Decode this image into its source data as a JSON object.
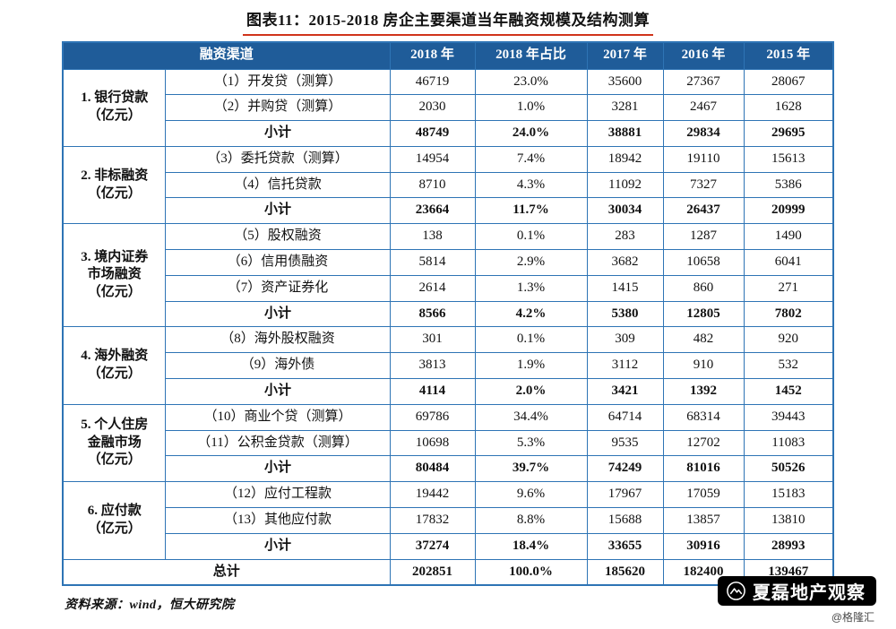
{
  "title": "图表11：2015-2018 房企主要渠道当年融资规模及结构测算",
  "table": {
    "headers": [
      "融资渠道",
      "2018 年",
      "2018 年占比",
      "2017 年",
      "2016 年",
      "2015 年"
    ],
    "groups": [
      {
        "category": "1. 银行贷款\n（亿元）",
        "rows": [
          {
            "item": "（1）开发贷（测算）",
            "values": [
              "46719",
              "23.0%",
              "35600",
              "27367",
              "28067"
            ]
          },
          {
            "item": "（2）并购贷（测算）",
            "values": [
              "2030",
              "1.0%",
              "3281",
              "2467",
              "1628"
            ]
          }
        ],
        "subtotal": {
          "label": "小计",
          "values": [
            "48749",
            "24.0%",
            "38881",
            "29834",
            "29695"
          ]
        }
      },
      {
        "category": "2. 非标融资\n（亿元）",
        "rows": [
          {
            "item": "（3）委托贷款（测算）",
            "values": [
              "14954",
              "7.4%",
              "18942",
              "19110",
              "15613"
            ]
          },
          {
            "item": "（4）信托贷款",
            "values": [
              "8710",
              "4.3%",
              "11092",
              "7327",
              "5386"
            ]
          }
        ],
        "subtotal": {
          "label": "小计",
          "values": [
            "23664",
            "11.7%",
            "30034",
            "26437",
            "20999"
          ]
        }
      },
      {
        "category": "3. 境内证券\n市场融资\n（亿元）",
        "rows": [
          {
            "item": "（5）股权融资",
            "values": [
              "138",
              "0.1%",
              "283",
              "1287",
              "1490"
            ]
          },
          {
            "item": "（6）信用债融资",
            "values": [
              "5814",
              "2.9%",
              "3682",
              "10658",
              "6041"
            ]
          },
          {
            "item": "（7）资产证券化",
            "values": [
              "2614",
              "1.3%",
              "1415",
              "860",
              "271"
            ]
          }
        ],
        "subtotal": {
          "label": "小计",
          "values": [
            "8566",
            "4.2%",
            "5380",
            "12805",
            "7802"
          ]
        }
      },
      {
        "category": "4. 海外融资\n（亿元）",
        "rows": [
          {
            "item": "（8）海外股权融资",
            "values": [
              "301",
              "0.1%",
              "309",
              "482",
              "920"
            ]
          },
          {
            "item": "（9）海外债",
            "values": [
              "3813",
              "1.9%",
              "3112",
              "910",
              "532"
            ]
          }
        ],
        "subtotal": {
          "label": "小计",
          "values": [
            "4114",
            "2.0%",
            "3421",
            "1392",
            "1452"
          ]
        }
      },
      {
        "category": "5. 个人住房\n金融市场\n（亿元）",
        "rows": [
          {
            "item": "（10）商业个贷（测算）",
            "values": [
              "69786",
              "34.4%",
              "64714",
              "68314",
              "39443"
            ]
          },
          {
            "item": "（11）公积金贷款（测算）",
            "values": [
              "10698",
              "5.3%",
              "9535",
              "12702",
              "11083"
            ]
          }
        ],
        "subtotal": {
          "label": "小计",
          "values": [
            "80484",
            "39.7%",
            "74249",
            "81016",
            "50526"
          ]
        }
      },
      {
        "category": "6. 应付款\n（亿元）",
        "rows": [
          {
            "item": "（12）应付工程款",
            "values": [
              "19442",
              "9.6%",
              "17967",
              "17059",
              "15183"
            ]
          },
          {
            "item": "（13）其他应付款",
            "values": [
              "17832",
              "8.8%",
              "15688",
              "13857",
              "13810"
            ]
          }
        ],
        "subtotal": {
          "label": "小计",
          "values": [
            "37274",
            "18.4%",
            "33655",
            "30916",
            "28993"
          ]
        }
      }
    ],
    "total": {
      "label": "总计",
      "values": [
        "202851",
        "100.0%",
        "185620",
        "182400",
        "139467"
      ]
    }
  },
  "source": "资料来源：wind，恒大研究院",
  "badge": {
    "name": "夏磊地产观察",
    "watermark": "@格隆汇"
  },
  "colors": {
    "header_bg": "#1f5c99",
    "border": "#2e74b5",
    "title_underline": "#d0341b"
  }
}
